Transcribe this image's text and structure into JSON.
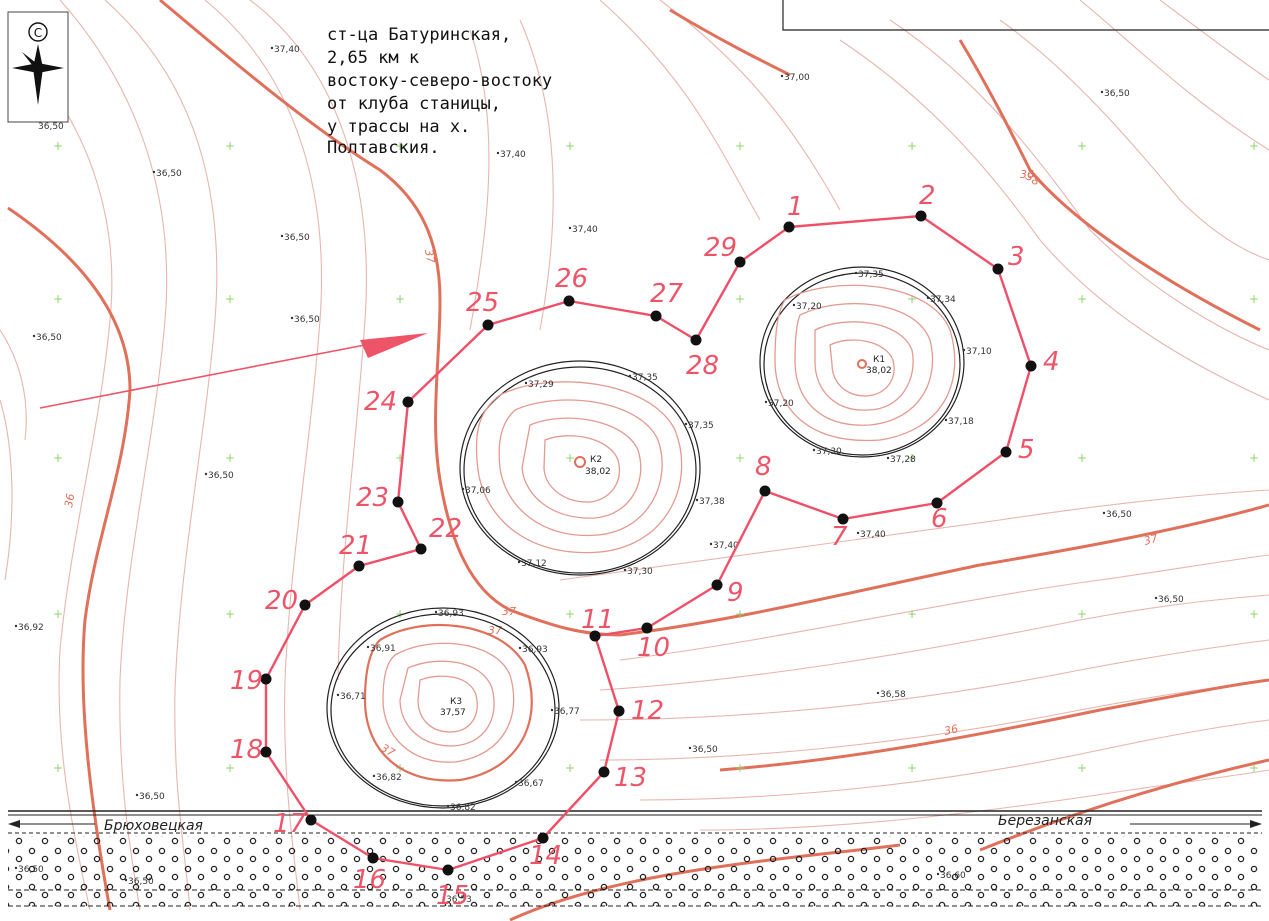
{
  "title_lines": [
    "ст-ца Батуринская,",
    "2,65 км к",
    "востоку-северо-востоку",
    "от клуба станицы,",
    "у трассы на х.",
    "Полтавския."
  ],
  "compass_letter": "С",
  "compass_elev": "36,50",
  "roads": {
    "left": "Брюховецкая",
    "right": "Березанская"
  },
  "points": [
    {
      "label": "1"
    },
    {
      "label": "2"
    },
    {
      "label": "3"
    },
    {
      "label": "4"
    },
    {
      "label": "5"
    },
    {
      "label": "6"
    },
    {
      "label": "7"
    },
    {
      "label": "8"
    },
    {
      "label": "9"
    },
    {
      "label": "10"
    },
    {
      "label": "11"
    },
    {
      "label": "12"
    },
    {
      "label": "13"
    },
    {
      "label": "14"
    },
    {
      "label": "15"
    },
    {
      "label": "16"
    },
    {
      "label": "17"
    },
    {
      "label": "18"
    },
    {
      "label": "19"
    },
    {
      "label": "20"
    },
    {
      "label": "21"
    },
    {
      "label": "22"
    },
    {
      "label": "23"
    },
    {
      "label": "24"
    },
    {
      "label": "25"
    },
    {
      "label": "26"
    },
    {
      "label": "27"
    },
    {
      "label": "28"
    },
    {
      "label": "29"
    }
  ],
  "kurgans": [
    {
      "name": "К1",
      "elev": "38,02"
    },
    {
      "name": "К2",
      "elev": "38,02"
    },
    {
      "name": "К3",
      "elev": "37,57"
    }
  ],
  "elevations": [
    "37,40",
    "37,00",
    "36,50",
    "36,50",
    "37,40",
    "36,50",
    "37,40",
    "36,50",
    "36,50",
    "36,50",
    "37,35",
    "37,34",
    "37,20",
    "37,10",
    "37,20",
    "37,18",
    "37,30",
    "37,28",
    "37,40",
    "37,29",
    "37,35",
    "37,35",
    "37,38",
    "37,30",
    "37,12",
    "37,06",
    "37,40",
    "36,93",
    "36,91",
    "36,93",
    "36,71",
    "36,77",
    "36,82",
    "36,67",
    "36,82",
    "36,50",
    "36,50",
    "36,58",
    "36,50",
    "36,92",
    "36,50",
    "36,50",
    "36,50",
    "36,53",
    "36,60"
  ],
  "contour_labels": [
    "38",
    "37",
    "37",
    "37",
    "36",
    "37",
    "37",
    "36",
    "36"
  ],
  "colors": {
    "route": "#ef5068",
    "contour_main": "#e0705a",
    "contour_minor": "#e8b5ae",
    "grid_cross": "#8fd46a"
  }
}
